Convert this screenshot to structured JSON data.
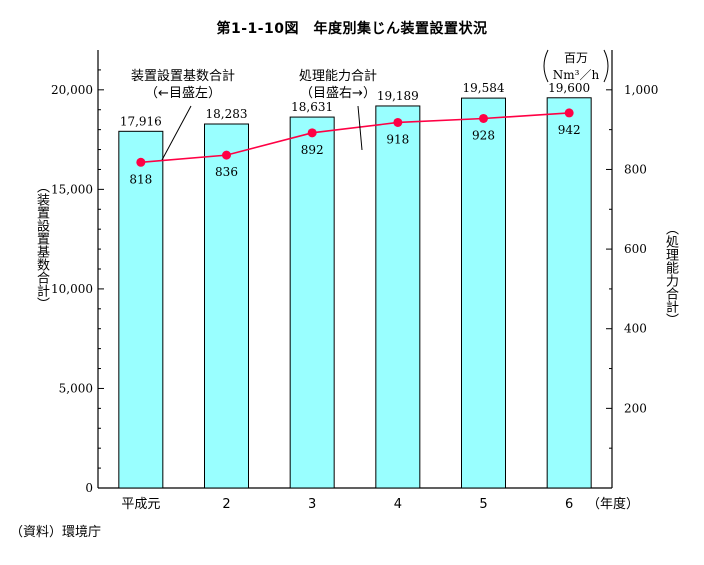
{
  "title": "第1-1-10図　年度別集じん装置設置状況",
  "source": "（資料）環境庁",
  "left_note": {
    "line1": "装置設置基数合計",
    "line2": "（←目盛左）"
  },
  "right_note": {
    "line1": "処理能力合計",
    "line2": "（目盛右→）"
  },
  "right_unit": {
    "line1": "百万",
    "line2": "Nm³／h"
  },
  "ylabel_left": "（装置設置基数合計）",
  "ylabel_right": "（処理能力合計）",
  "xlabel_suffix": "（年度）",
  "colors": {
    "bar_fill": "#99ffff",
    "bar_stroke": "#000000",
    "line": "#ff0044"
  },
  "chart_data": {
    "type": "bar",
    "categories": [
      "平成元",
      "2",
      "3",
      "4",
      "5",
      "6"
    ],
    "series": [
      {
        "values": [
          17916,
          18283,
          18631,
          19189,
          19584,
          19600
        ],
        "axis": "left",
        "kind": "bar",
        "labels": [
          "17,916",
          "18,283",
          "18,631",
          "19,189",
          "19,584",
          "19,600"
        ]
      },
      {
        "values": [
          818,
          836,
          892,
          918,
          928,
          942
        ],
        "axis": "right",
        "kind": "line",
        "labels": [
          "818",
          "836",
          "892",
          "918",
          "928",
          "942"
        ]
      }
    ],
    "left_axis": {
      "ylim": [
        0,
        22000
      ],
      "ticks": [
        0,
        5000,
        10000,
        15000,
        20000
      ],
      "tick_labels": [
        "0",
        "5,000",
        "10,000",
        "15,000",
        "20,000"
      ]
    },
    "right_axis": {
      "ylim": [
        0,
        1100
      ],
      "ticks": [
        200,
        400,
        600,
        800,
        1000
      ],
      "tick_labels": [
        "200",
        "400",
        "600",
        "800",
        "1,000"
      ]
    },
    "grid": false,
    "legend": "annotations"
  }
}
